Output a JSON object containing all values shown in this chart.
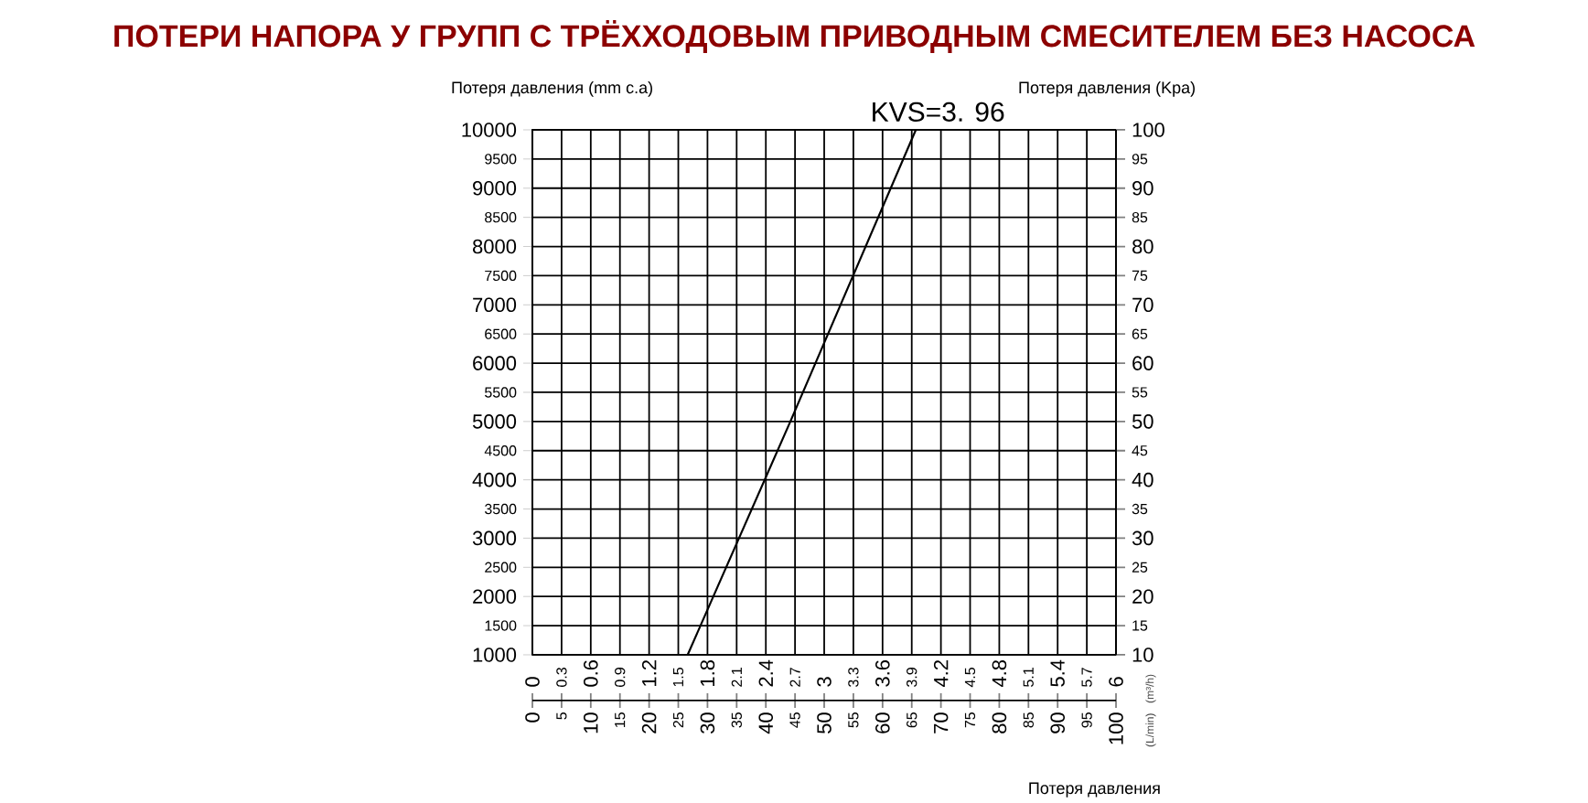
{
  "chart_data": {
    "type": "line",
    "title": "ПОТЕРИ НАПОРА У ГРУПП С ТРЁХХОДОВЫМ ПРИВОДНЫМ СМЕСИТЕЛЕМ БЕЗ НАСОСА",
    "xlabel": "Потеря давления",
    "ylabel": "Потеря давления (mm c.a)",
    "y2label": "Потеря давления (Kpa)",
    "annotations": [
      "(L/min)",
      "(m³/h)"
    ],
    "series": [
      {
        "name": "KVS=3. 96",
        "color": "#000000",
        "x": [
          26.6,
          44.2,
          65.7
        ],
        "values": [
          1000,
          5000,
          10000
        ]
      }
    ],
    "xlim": [
      0,
      100
    ],
    "xticks": [
      0,
      5,
      10,
      15,
      20,
      25,
      30,
      35,
      40,
      45,
      50,
      55,
      60,
      65,
      70,
      75,
      80,
      85,
      90,
      95,
      100
    ],
    "x2lim": [
      0,
      6
    ],
    "x2ticks": [
      0,
      0.3,
      0.6,
      0.9,
      1.2,
      1.5,
      1.8,
      2.1,
      2.4,
      2.7,
      3,
      3.3,
      3.6,
      3.9,
      4.2,
      4.5,
      4.8,
      5.1,
      5.4,
      5.7,
      6
    ],
    "ylim": [
      1000,
      10000
    ],
    "yticks": [
      1000,
      1500,
      2000,
      2500,
      3000,
      3500,
      4000,
      4500,
      5000,
      5500,
      6000,
      6500,
      7000,
      7500,
      8000,
      8500,
      9000,
      9500,
      10000
    ],
    "y2lim": [
      10,
      100
    ],
    "y2ticks": [
      10,
      15,
      20,
      25,
      30,
      35,
      40,
      45,
      50,
      55,
      60,
      65,
      70,
      75,
      80,
      85,
      90,
      95,
      100
    ],
    "grid": true,
    "marker": "none",
    "line_style": "solid"
  }
}
